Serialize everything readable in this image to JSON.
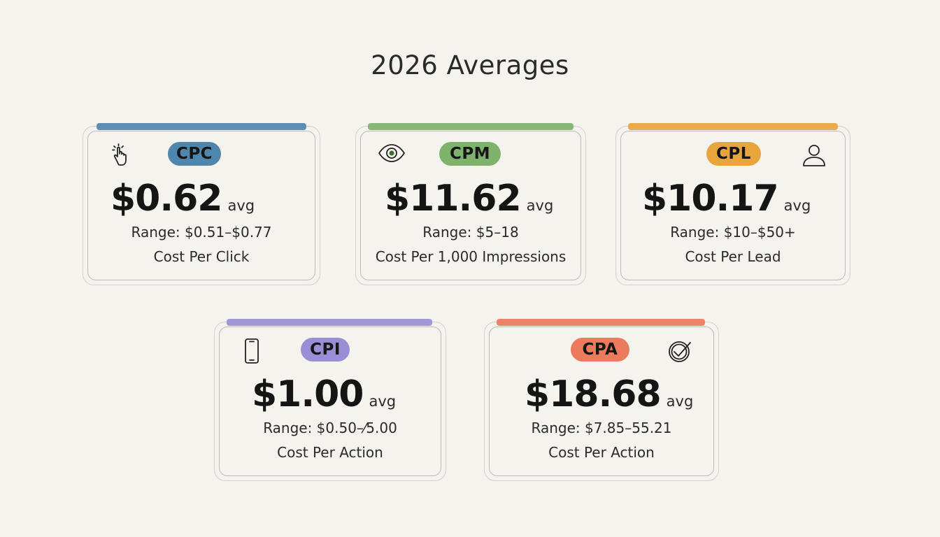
{
  "title": "2026 Averages",
  "cards": [
    {
      "code": "CPC",
      "value": "$0.62",
      "avg_label": "avg",
      "range": "Range: $0.51–$0.77",
      "description": "Cost Per Click",
      "icon": "pointer-click-icon",
      "accent": "#4f86ad"
    },
    {
      "code": "CPM",
      "value": "$11.62",
      "avg_label": "avg",
      "range": "Range: $5–18",
      "description": "Cost Per 1,000 Impressions",
      "icon": "eye-icon",
      "accent": "#7fb26b"
    },
    {
      "code": "CPL",
      "value": "$10.17",
      "avg_label": "avg",
      "range": "Range: $10–$50+",
      "description": "Cost Per Lead",
      "icon": "user-icon",
      "accent": "#e8a53d"
    },
    {
      "code": "CPI",
      "value": "$1.00",
      "avg_label": "avg",
      "range": "Range: $0.50–⁄5.00",
      "description": "Cost Per Action",
      "icon": "phone-icon",
      "accent": "#9a8fd6"
    },
    {
      "code": "CPA",
      "value": "$18.68",
      "avg_label": "avg",
      "range": "Range: $7.85–55.21",
      "description": "Cost Per Action",
      "icon": "check-circle-icon",
      "accent": "#ec7a5c"
    }
  ]
}
